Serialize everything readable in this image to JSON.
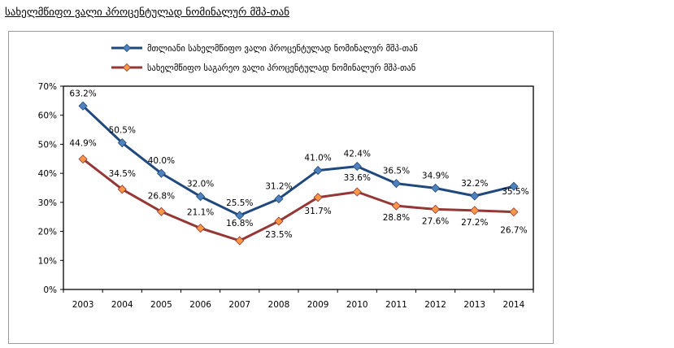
{
  "page": {
    "title": "სახელმწიფო ვალი პროცენტულად ნომინალურ მშპ-თან"
  },
  "chart_data": {
    "type": "line",
    "title": "სახელმწიფო ვალი პროცენტულად ნომინალურ მშპ-თან",
    "categories": [
      "2003",
      "2004",
      "2005",
      "2006",
      "2007",
      "2008",
      "2009",
      "2010",
      "2011",
      "2012",
      "2013",
      "2014"
    ],
    "ylim": [
      0,
      70
    ],
    "ytick_step": 10,
    "ytick_format": "percent",
    "grid": false,
    "legend_position": "top",
    "series": [
      {
        "name": "მთლიანი სახელმწიფო ვალი პროცენტულად ნომინალურ მშპ-თან",
        "values": [
          63.2,
          50.5,
          40.0,
          32.0,
          25.5,
          31.2,
          41.0,
          42.4,
          36.5,
          34.9,
          32.2,
          35.5
        ],
        "labels": [
          "63.2%",
          "50.5%",
          "40.0%",
          "32.0%",
          "25.5%",
          "31.2%",
          "41.0%",
          "42.4%",
          "36.5%",
          "34.9%",
          "32.2%",
          "35.5%"
        ],
        "line_color": "#1f497d",
        "marker_color": "#4f81bd"
      },
      {
        "name": "სახელმწიფო საგარეო ვალი პროცენტულად ნომინალურ მშპ-თან",
        "values": [
          44.9,
          34.5,
          26.8,
          21.1,
          16.8,
          23.5,
          31.7,
          33.6,
          28.8,
          27.6,
          27.2,
          26.7
        ],
        "labels": [
          "44.9%",
          "34.5%",
          "26.8%",
          "21.1%",
          "16.8%",
          "23.5%",
          "31.7%",
          "33.6%",
          "28.8%",
          "27.6%",
          "27.2%",
          "26.7%"
        ],
        "line_color": "#953735",
        "marker_color": "#f79646"
      }
    ]
  }
}
